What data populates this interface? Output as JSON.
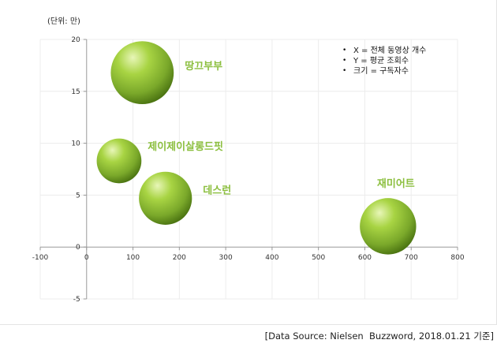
{
  "chart_data": {
    "type": "bubble",
    "unit_label": "(단위: 만)",
    "xlim": [
      -100,
      800
    ],
    "ylim": [
      -5,
      20
    ],
    "x_ticks": [
      "-100",
      "0",
      "100",
      "200",
      "300",
      "400",
      "500",
      "600",
      "700",
      "800"
    ],
    "y_ticks": [
      "20",
      "15",
      "10",
      "5",
      "0",
      "-5"
    ],
    "points": [
      {
        "label": "땅끄부부",
        "x": 120,
        "y": 16.8,
        "size": 3.8
      },
      {
        "label": "제이제이살롱드핏",
        "x": 70,
        "y": 8.3,
        "size": 2.7
      },
      {
        "label": "데스런",
        "x": 170,
        "y": 4.7,
        "size": 3.2
      },
      {
        "label": "재미어트",
        "x": 650,
        "y": 2.0,
        "size": 3.4
      }
    ],
    "notes": [
      "X = 전체 동영상 개수",
      "Y = 평균 조회수",
      "크기 = 구독자수"
    ],
    "source": "[Data Source: Nielsen  Buzzword, 2018.01.21 기준]"
  },
  "colors": {
    "bubble_light": "#dff0a8",
    "bubble_mid": "#9dcc3c",
    "bubble_dark": "#4f7a14",
    "label": "#8cbf3f",
    "grid": "#ececec",
    "axis": "#9a9a9a"
  }
}
